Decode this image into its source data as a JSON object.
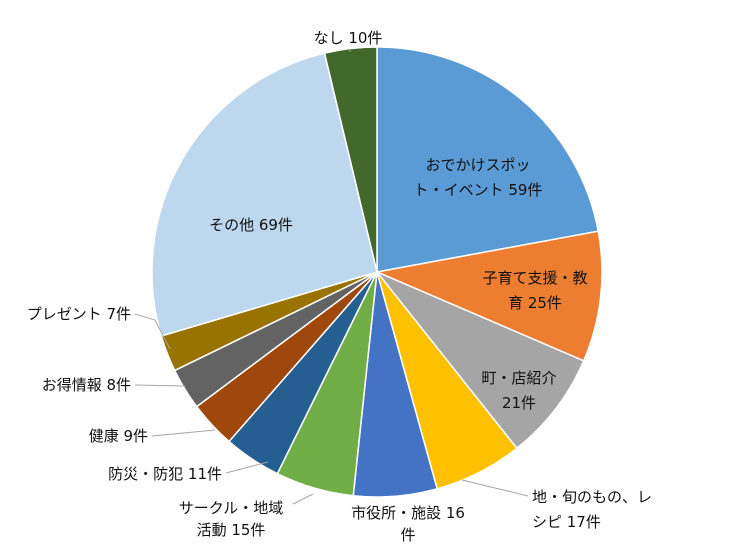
{
  "chart_data": {
    "type": "pie",
    "title": "",
    "start_angle_deg": 0,
    "direction": "clockwise",
    "legend": "none",
    "slices": [
      {
        "label": [
          "おでかけスポッ",
          "ト・イベント 59件"
        ],
        "value": 59,
        "color": "#5B9BD5"
      },
      {
        "label": [
          "子育て支援・教",
          "育 25件"
        ],
        "value": 25,
        "color": "#ED7D31"
      },
      {
        "label": [
          "町・店紹介",
          "21件"
        ],
        "value": 21,
        "color": "#A5A5A5"
      },
      {
        "label": [
          "地・旬のもの、レ",
          "シピ 17件"
        ],
        "value": 17,
        "color": "#FFC000"
      },
      {
        "label": [
          "市役所・施設 16",
          "件"
        ],
        "value": 16,
        "color": "#4472C4"
      },
      {
        "label": [
          "サークル・地域",
          "活動 15件"
        ],
        "value": 15,
        "color": "#70AD47"
      },
      {
        "label": [
          "防災・防犯 11件"
        ],
        "value": 11,
        "color": "#255E91"
      },
      {
        "label": [
          "健康 9件"
        ],
        "value": 9,
        "color": "#9E480E"
      },
      {
        "label": [
          "お得情報 8件"
        ],
        "value": 8,
        "color": "#636363"
      },
      {
        "label": [
          "プレゼント 7件"
        ],
        "value": 7,
        "color": "#997300"
      },
      {
        "label": [
          "その他 69件"
        ],
        "value": 69,
        "color": "#BDD7EE"
      },
      {
        "label": [
          "なし 10件"
        ],
        "value": 10,
        "color": "#43682B"
      }
    ]
  }
}
